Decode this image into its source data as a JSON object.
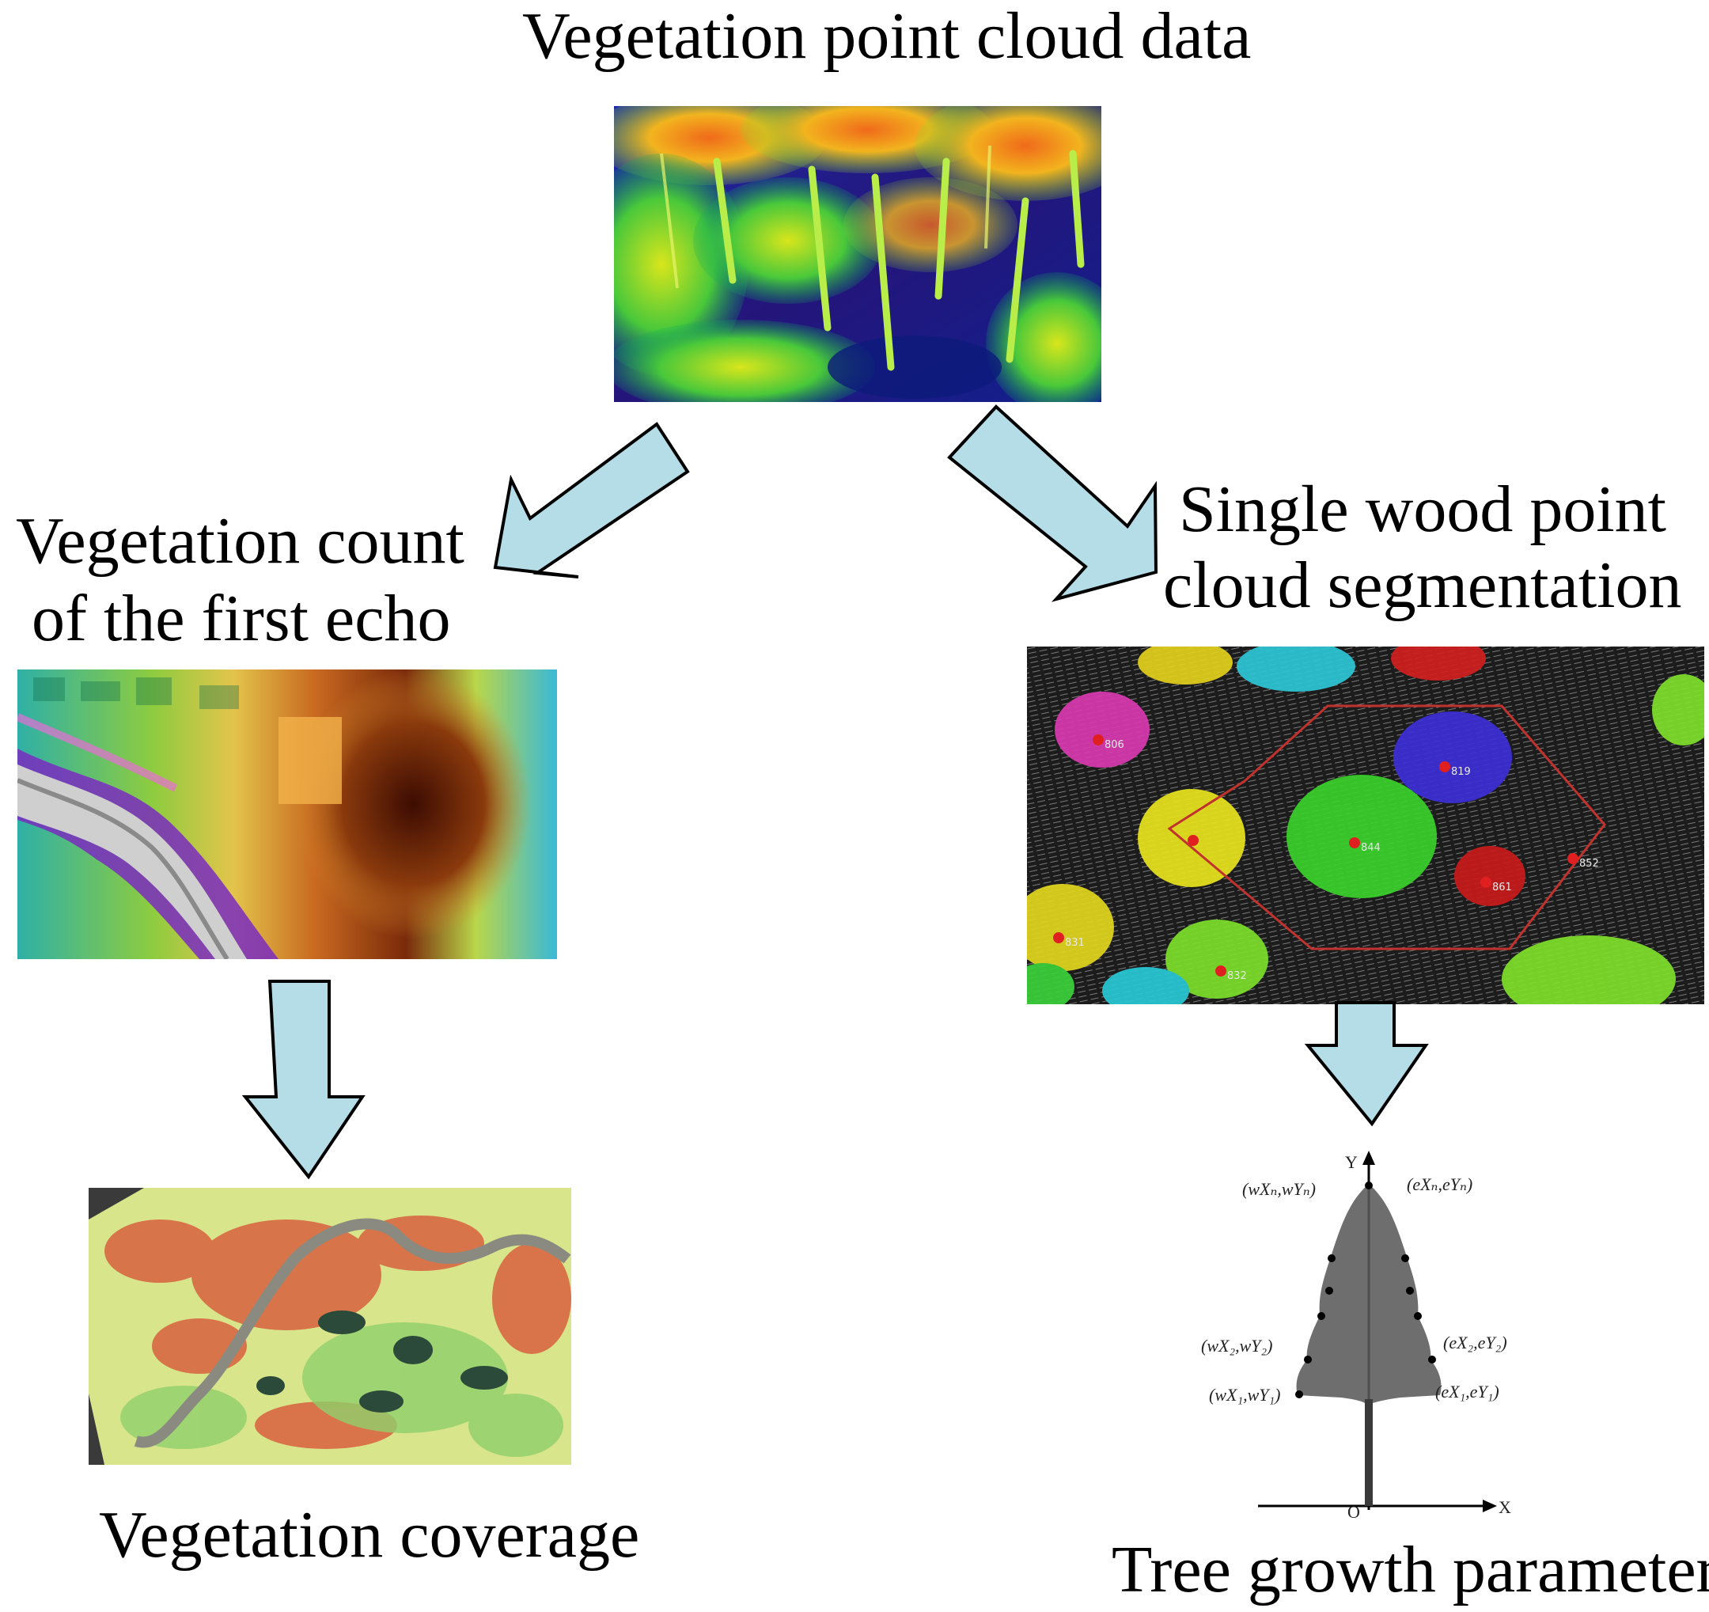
{
  "titles": {
    "top": "Vegetation point cloud data",
    "left_line1": "Vegetation count",
    "left_line2": "of the first echo",
    "right_line1": "Single wood point",
    "right_line2": "cloud segmentation",
    "bottom_left": "Vegetation coverage",
    "bottom_right": "Tree growth parameter"
  },
  "segmentation_ids": [
    "806",
    "819",
    "844",
    "852",
    "861",
    "831",
    "832"
  ],
  "tree_diagram": {
    "axis_y": "Y",
    "axis_x": "X",
    "origin": "O",
    "points": {
      "wn": "(wXₙ,wYₙ)",
      "en": "(eXₙ,eYₙ)",
      "w2": "(wX₂,wY₂)",
      "e2": "(eX₂,eY₂)",
      "w1": "(wX₁,wY₁)",
      "e1": "(eX₁,eY₁)"
    }
  },
  "colors": {
    "arrow_fill": "#b5dde8",
    "arrow_stroke": "#000000",
    "hexagon": "#c0322d"
  }
}
